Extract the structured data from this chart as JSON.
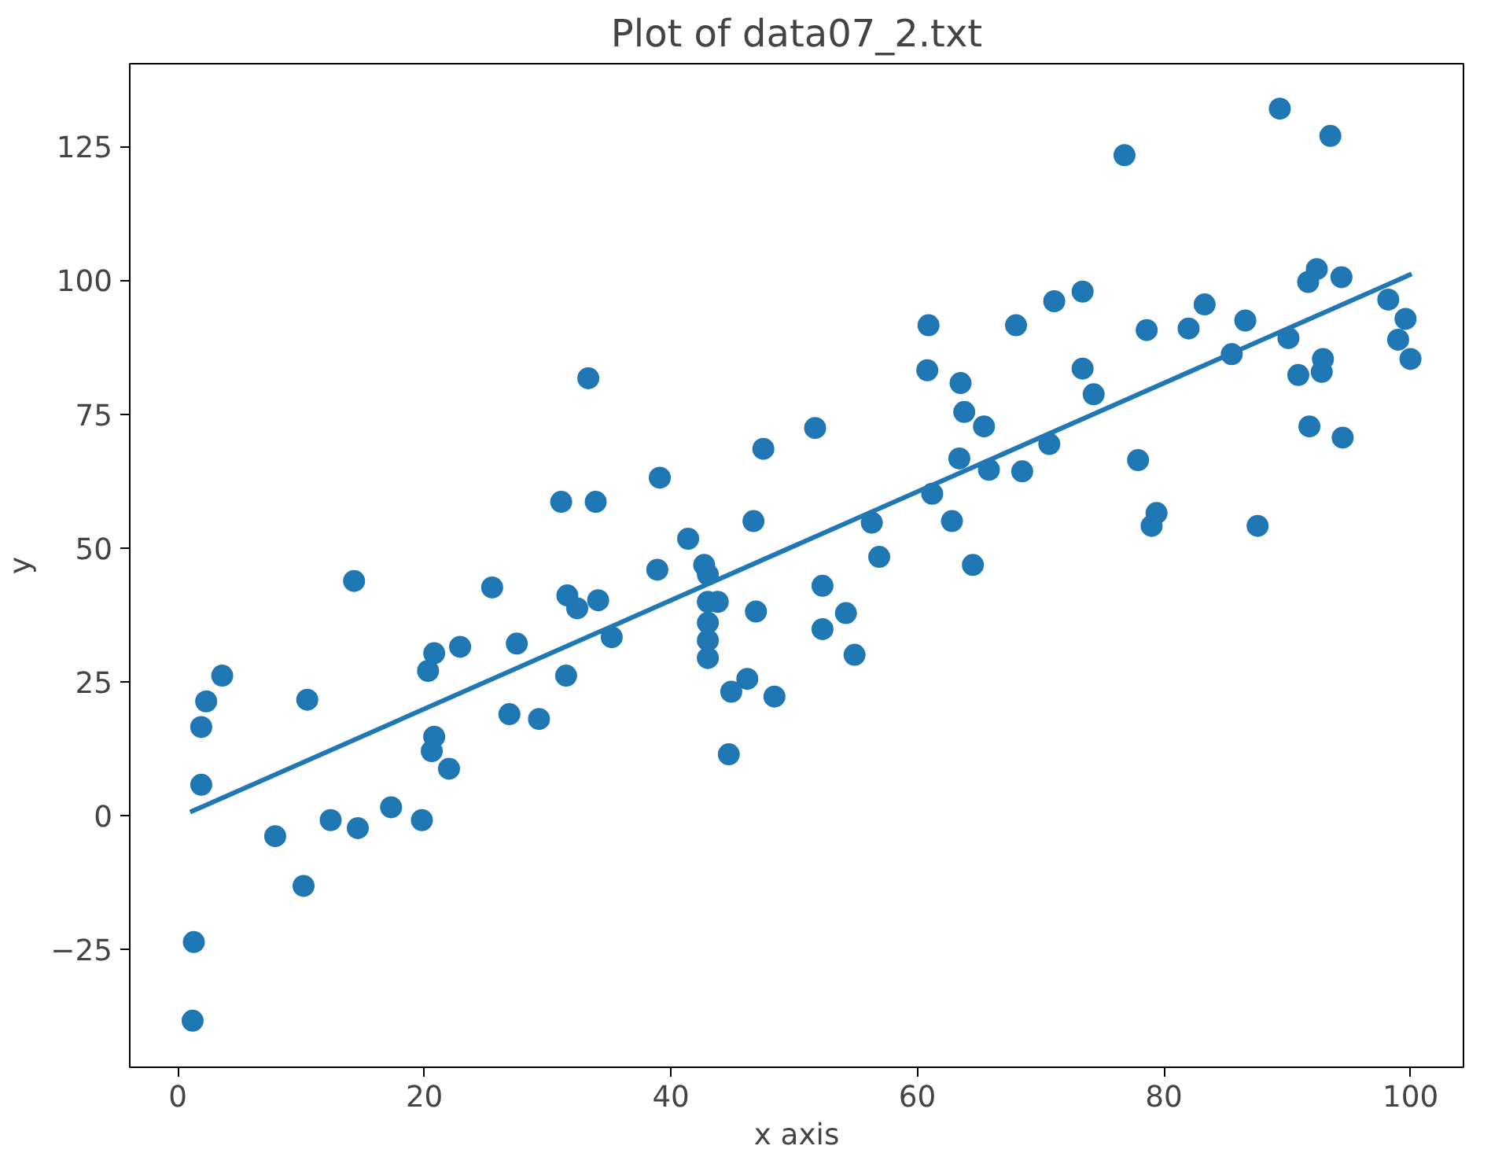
{
  "chart_data": {
    "type": "scatter",
    "title": "Plot of data07_2.txt",
    "xlabel": "x axis",
    "ylabel": "y",
    "xlim": [
      -3.9,
      104.3
    ],
    "ylim": [
      -47.1,
      140.5
    ],
    "xticks": [
      0,
      20,
      40,
      60,
      80,
      100
    ],
    "yticks": [
      {
        "value": -25,
        "label": "−25"
      },
      0,
      25,
      50,
      75,
      100,
      125
    ],
    "grid": false,
    "marker": "circle",
    "series": [
      {
        "color": "#1f77b4",
        "x": [
          1.2,
          1.3,
          1.9,
          1.9,
          2.3,
          3.6,
          7.9,
          10.2,
          10.5,
          12.4,
          14.3,
          14.6,
          17.3,
          19.8,
          20.3,
          20.8,
          20.8,
          20.6,
          22.0,
          22.9,
          25.5,
          26.9,
          27.5,
          29.3,
          31.1,
          31.5,
          31.6,
          32.4,
          33.3,
          33.9,
          34.1,
          35.2,
          38.9,
          39.1,
          41.4,
          42.7,
          43.0,
          43.0,
          43.0,
          43.0,
          43.0,
          43.8,
          44.9,
          44.7,
          46.2,
          46.7,
          46.9,
          47.5,
          48.4,
          51.7,
          52.3,
          52.3,
          54.2,
          54.9,
          56.3,
          56.9,
          60.9,
          60.8,
          61.2,
          62.8,
          63.5,
          63.8,
          63.4,
          64.5,
          65.4,
          65.8,
          68.0,
          68.5,
          70.7,
          71.1,
          73.4,
          73.4,
          74.3,
          76.8,
          77.9,
          78.6,
          79.0,
          79.4,
          82.0,
          83.3,
          85.5,
          86.6,
          87.6,
          89.4,
          90.1,
          90.9,
          91.7,
          91.8,
          92.4,
          92.8,
          92.9,
          93.5,
          94.5,
          94.4,
          98.2,
          99.0,
          99.6,
          100.0
        ],
        "values": [
          -38.4,
          -23.7,
          5.7,
          16.5,
          21.3,
          26.1,
          -3.9,
          -13.2,
          21.6,
          -0.9,
          43.8,
          -2.4,
          1.5,
          -0.9,
          27.0,
          30.3,
          14.7,
          12.0,
          8.7,
          31.5,
          42.6,
          18.9,
          32.1,
          18.0,
          58.6,
          26.1,
          41.1,
          38.7,
          81.7,
          58.6,
          40.2,
          33.3,
          45.9,
          63.1,
          51.7,
          46.8,
          45.0,
          39.9,
          36.0,
          32.7,
          29.4,
          39.9,
          23.1,
          11.4,
          25.5,
          55.0,
          38.1,
          68.5,
          22.2,
          72.4,
          42.9,
          34.8,
          37.8,
          30.0,
          54.7,
          48.3,
          91.6,
          83.2,
          60.1,
          55.0,
          80.8,
          75.4,
          66.7,
          46.8,
          72.7,
          64.6,
          91.6,
          64.3,
          69.4,
          96.1,
          97.9,
          83.5,
          78.7,
          123.4,
          66.4,
          90.7,
          54.1,
          56.5,
          91.0,
          95.5,
          86.2,
          92.5,
          54.1,
          132.1,
          89.2,
          82.3,
          99.7,
          72.7,
          102.1,
          82.9,
          85.3,
          127.0,
          70.6,
          100.6,
          96.4,
          88.9,
          92.8,
          85.3
        ]
      },
      {
        "type": "line",
        "color": "#1f77b4",
        "x": [
          1.0,
          100.1
        ],
        "values": [
          0.6,
          101.2
        ],
        "marker": "none"
      }
    ]
  }
}
